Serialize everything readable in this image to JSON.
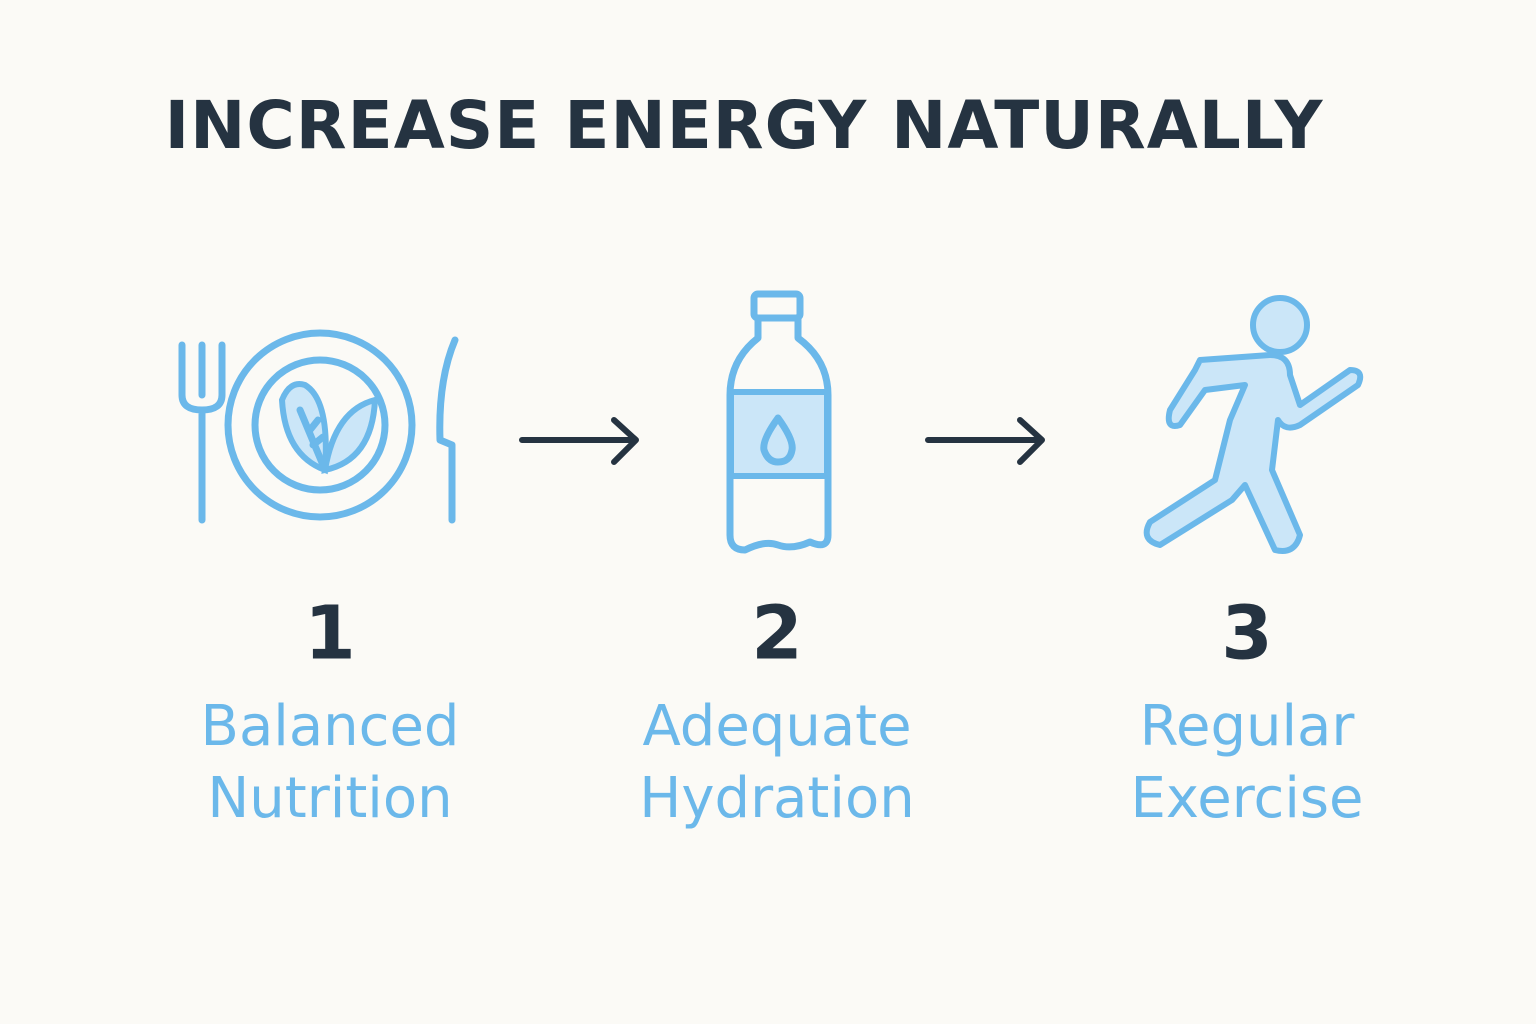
{
  "title": "INCREASE ENERGY NATURALLY",
  "steps": [
    {
      "number": "1",
      "label_lines": [
        "Balanced",
        "Nutrition"
      ]
    },
    {
      "number": "2",
      "label_lines": [
        "Adequate",
        "Hydration"
      ]
    },
    {
      "number": "3",
      "label_lines": [
        "Regular",
        "Exercise"
      ]
    }
  ]
}
